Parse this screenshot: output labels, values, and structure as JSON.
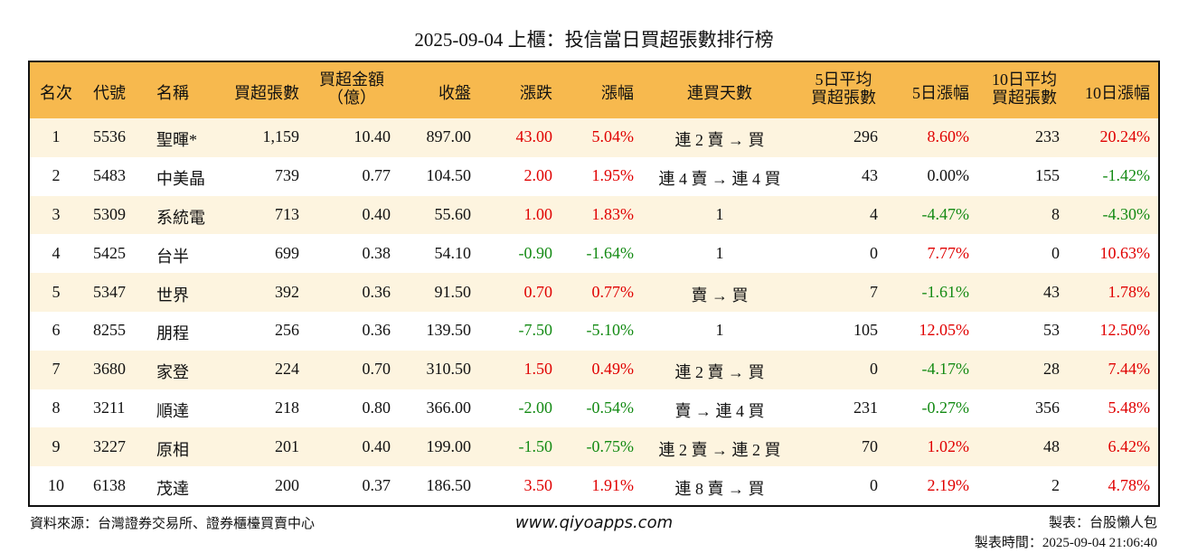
{
  "header": {
    "title": "2025-09-04 上櫃：投信當日買超張數排行榜"
  },
  "table": {
    "headers": [
      "名次",
      "代號",
      "名稱",
      "買超張數",
      [
        "買超金額",
        "（億）"
      ],
      "收盤",
      "漲跌",
      "漲幅",
      "連買天數",
      [
        "5日平均",
        "買超張數"
      ],
      "5日漲幅",
      [
        "10日平均",
        "買超張數"
      ],
      "10日漲幅"
    ],
    "rows": [
      [
        "1",
        "5536",
        "聖暉*",
        "1,159",
        "10.40",
        "897.00",
        "43.00",
        "5.04%",
        "連 2 賣 → 買",
        "296",
        "8.60%",
        "233",
        "20.24%"
      ],
      [
        "2",
        "5483",
        "中美晶",
        "739",
        "0.77",
        "104.50",
        "2.00",
        "1.95%",
        "連 4 賣 → 連 4 買",
        "43",
        "0.00%",
        "155",
        "-1.42%"
      ],
      [
        "3",
        "5309",
        "系統電",
        "713",
        "0.40",
        "55.60",
        "1.00",
        "1.83%",
        "1",
        "4",
        "-4.47%",
        "8",
        "-4.30%"
      ],
      [
        "4",
        "5425",
        "台半",
        "699",
        "0.38",
        "54.10",
        "-0.90",
        "-1.64%",
        "1",
        "0",
        "7.77%",
        "0",
        "10.63%"
      ],
      [
        "5",
        "5347",
        "世界",
        "392",
        "0.36",
        "91.50",
        "0.70",
        "0.77%",
        "賣 → 買",
        "7",
        "-1.61%",
        "43",
        "1.78%"
      ],
      [
        "6",
        "8255",
        "朋程",
        "256",
        "0.36",
        "139.50",
        "-7.50",
        "-5.10%",
        "1",
        "105",
        "12.05%",
        "53",
        "12.50%"
      ],
      [
        "7",
        "3680",
        "家登",
        "224",
        "0.70",
        "310.50",
        "1.50",
        "0.49%",
        "連 2 賣 → 買",
        "0",
        "-4.17%",
        "28",
        "7.44%"
      ],
      [
        "8",
        "3211",
        "順達",
        "218",
        "0.80",
        "366.00",
        "-2.00",
        "-0.54%",
        "賣 → 連 4 買",
        "231",
        "-0.27%",
        "356",
        "5.48%"
      ],
      [
        "9",
        "3227",
        "原相",
        "201",
        "0.40",
        "199.00",
        "-1.50",
        "-0.75%",
        "連 2 賣 → 連 2 買",
        "70",
        "1.02%",
        "48",
        "6.42%"
      ],
      [
        "10",
        "6138",
        "茂達",
        "200",
        "0.37",
        "186.50",
        "3.50",
        "1.91%",
        "連 8 賣 → 買",
        "0",
        "2.19%",
        "2",
        "4.78%"
      ]
    ]
  },
  "footer": {
    "source": "資料來源：台灣證券交易所、證券櫃檯買賣中心",
    "website": "www.qiyoapps.com",
    "maker": "製表：台股懶人包",
    "time": "製表時間：2025-09-04 21:06:40"
  }
}
